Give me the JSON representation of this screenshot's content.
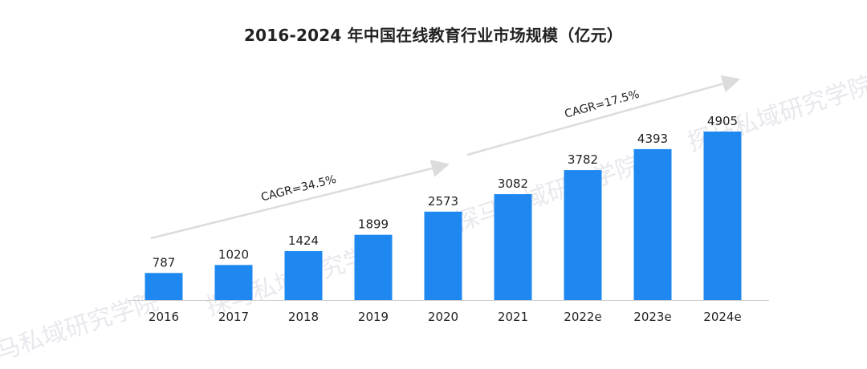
{
  "watermark_text": "探马私域研究学院",
  "chart_data": {
    "type": "bar",
    "title": "2016-2024 年中国在线教育行业市场规模（亿元）",
    "xlabel": "",
    "ylabel": "",
    "categories": [
      "2016",
      "2017",
      "2018",
      "2019",
      "2020",
      "2021",
      "2022e",
      "2023e",
      "2024e"
    ],
    "values": [
      787,
      1020,
      1424,
      1899,
      2573,
      3082,
      3782,
      4393,
      4905
    ],
    "value_labels": [
      "787",
      "1020",
      "1424",
      "1899",
      "2573",
      "3082",
      "3782",
      "4393",
      "4905"
    ],
    "ylim": [
      0,
      4905
    ],
    "grid": false,
    "legend": "none",
    "bar_color": "#1E88F0",
    "annotations": [
      {
        "text": "CAGR=34.5%",
        "from": "2016",
        "to": "2020"
      },
      {
        "text": "CAGR=17.5%",
        "from": "2020",
        "to": "2024e"
      }
    ]
  }
}
